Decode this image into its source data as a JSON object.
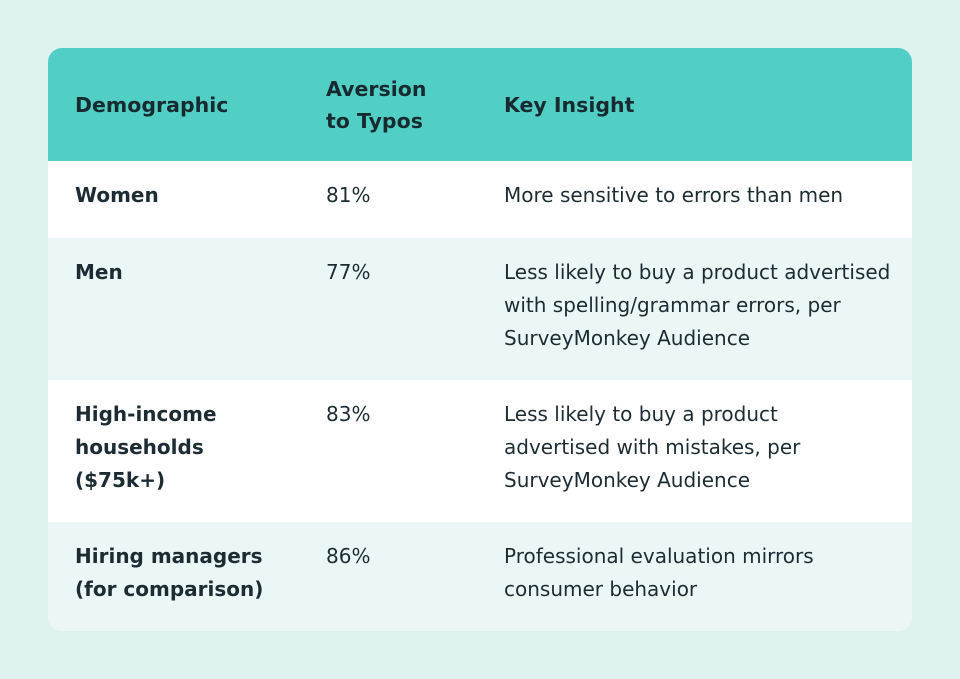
{
  "table": {
    "headers": {
      "demographic": "Demographic",
      "aversion": "Aversion to Typos",
      "insight": "Key Insight"
    },
    "rows": [
      {
        "demographic": "Women",
        "aversion": "81%",
        "insight": "More sensitive to errors than men"
      },
      {
        "demographic": "Men",
        "aversion": "77%",
        "insight": "Less likely to buy a product advertised with spelling/grammar errors, per SurveyMonkey Audience"
      },
      {
        "demographic": "High-income households ($75k+)",
        "aversion": "83%",
        "insight": "Less likely to buy a product advertised with mistakes, per SurveyMonkey Audience"
      },
      {
        "demographic": "Hiring managers (for comparison)",
        "aversion": "86%",
        "insight": "Professional evaluation mirrors consumer behavior"
      }
    ]
  },
  "colors": {
    "page_background": "#dff2ef",
    "header_background": "#52cfc5",
    "row_white": "#ffffff",
    "row_tint": "#ebf7f6",
    "text": "#1d2c33"
  }
}
